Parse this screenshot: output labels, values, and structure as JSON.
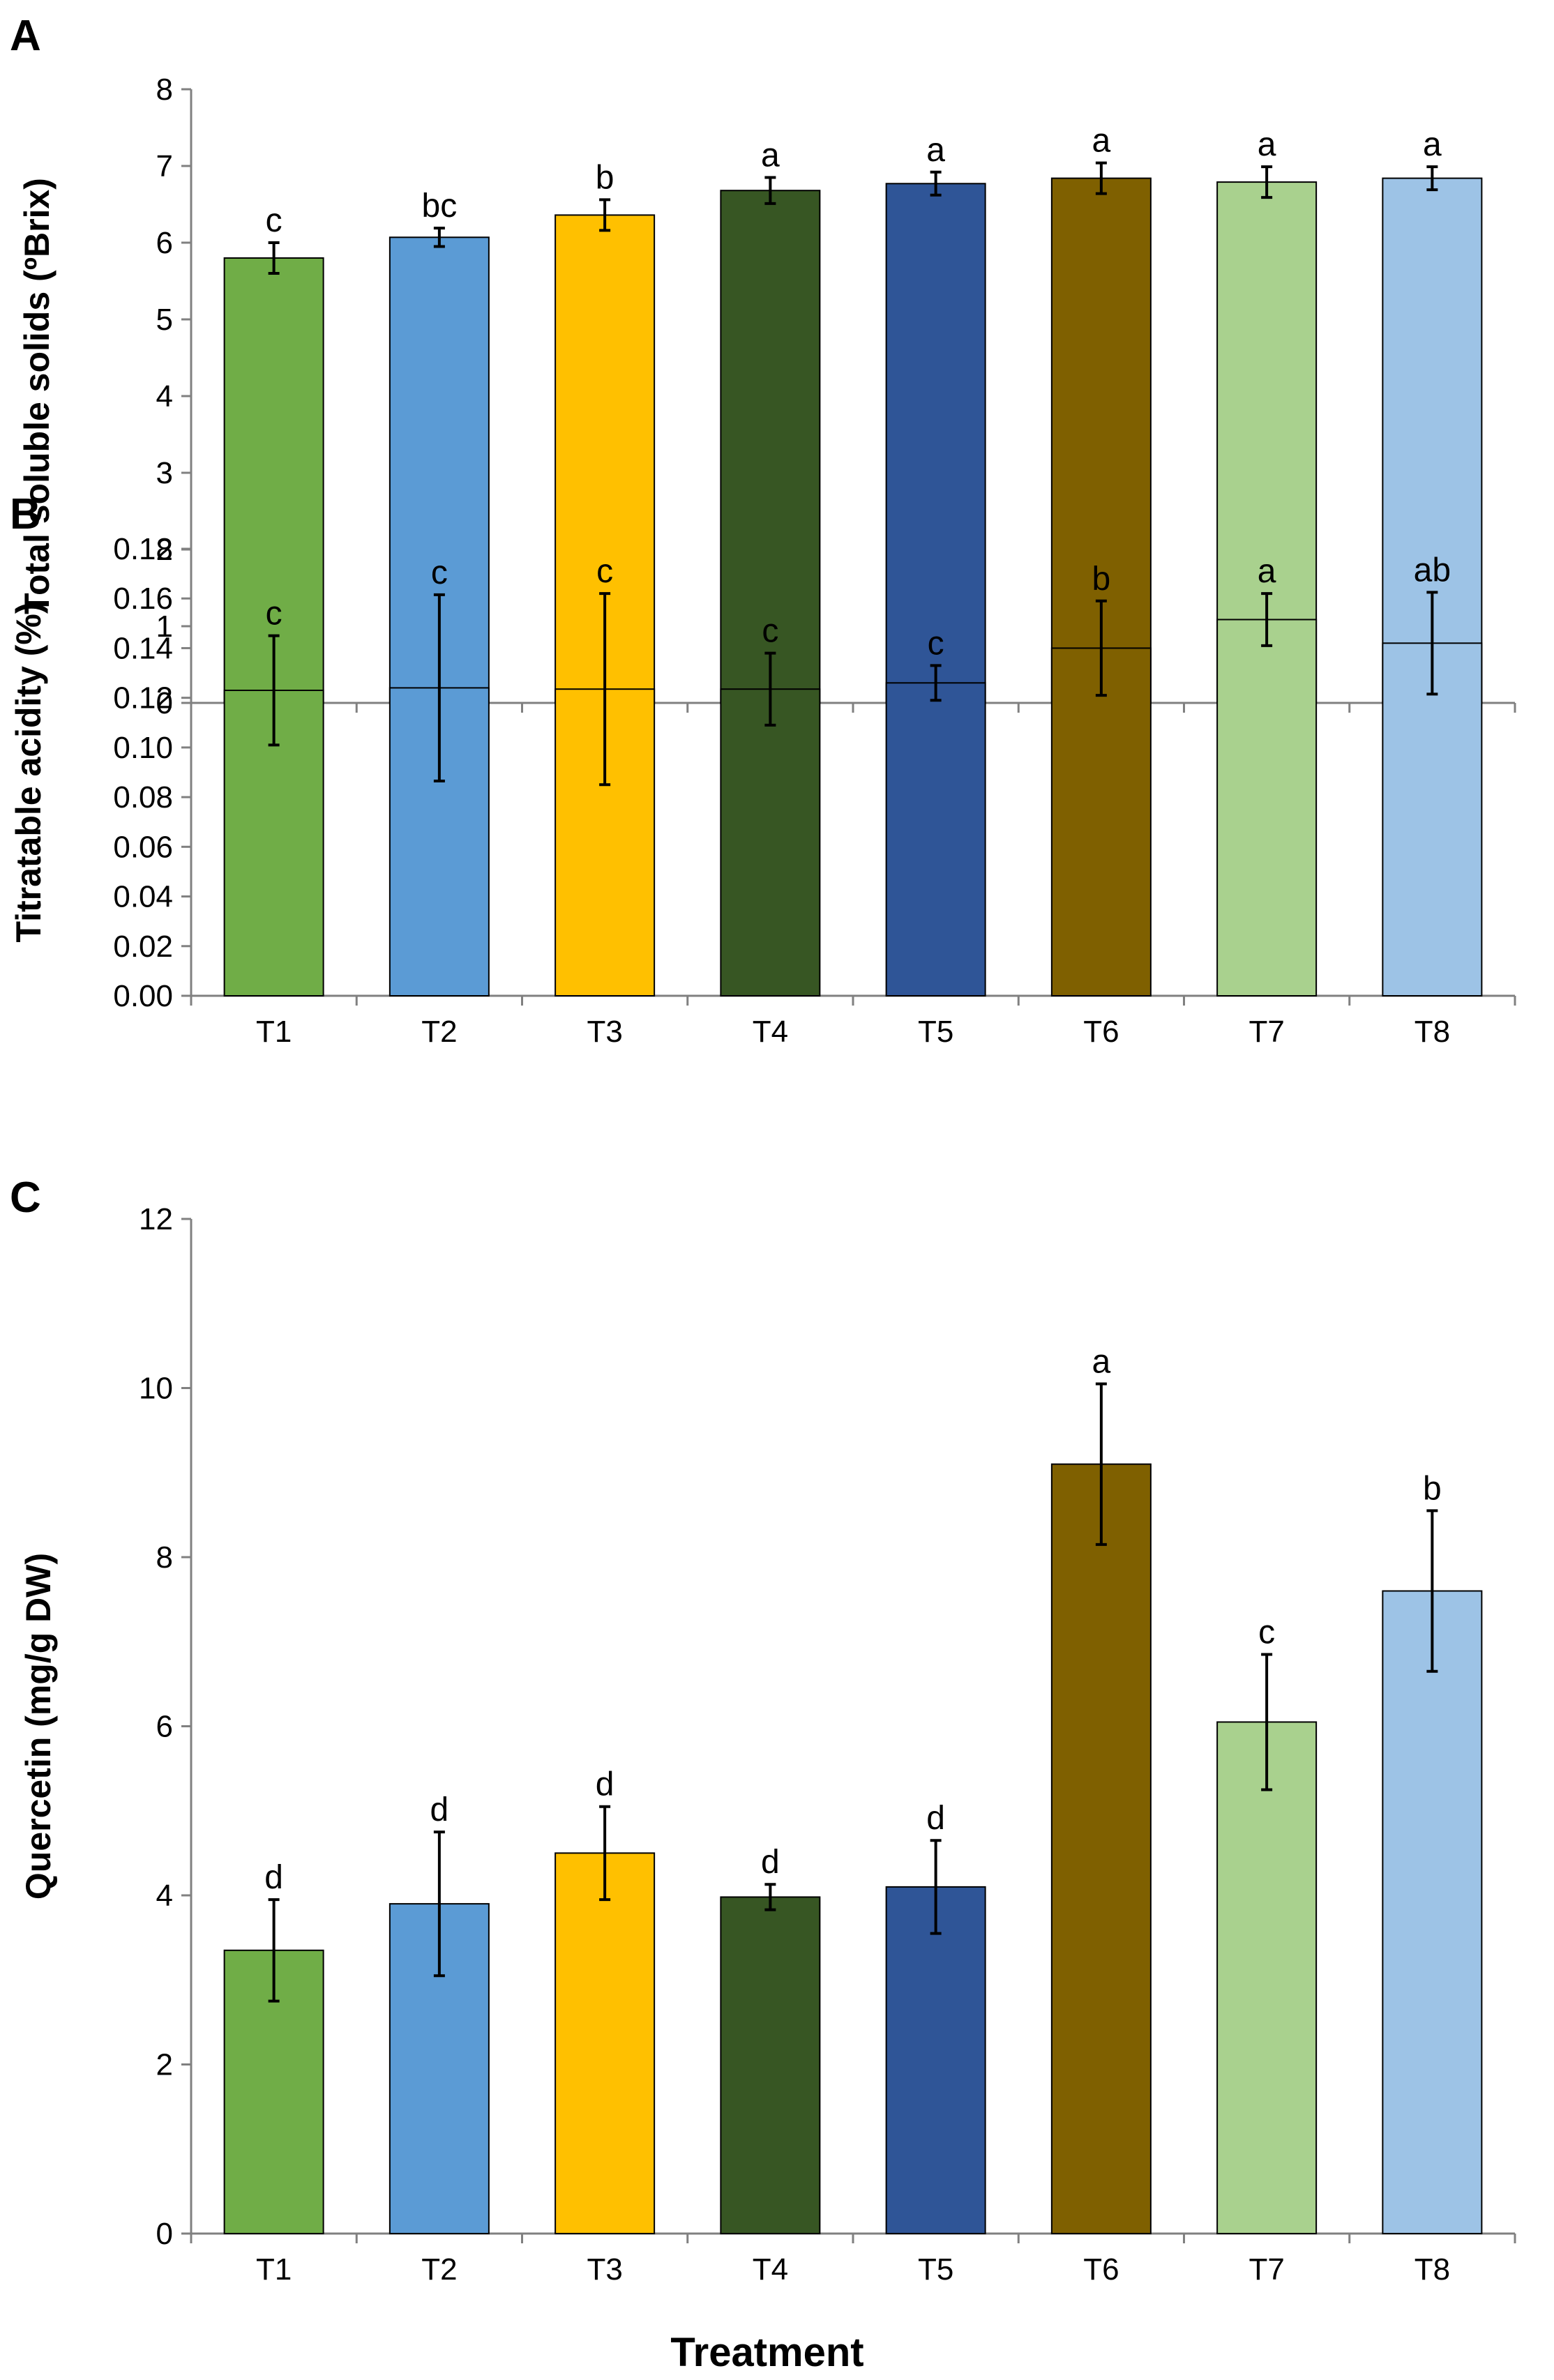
{
  "x_title": "Treatment",
  "colors": [
    "#70ad47",
    "#5b9bd5",
    "#ffc000",
    "#375623",
    "#2f5597",
    "#7f6000",
    "#a9d18e",
    "#9dc3e6"
  ],
  "chart_data": [
    {
      "type": "bar",
      "panel": "A",
      "title": "",
      "xlabel": "",
      "ylabel": "Total soluble solids (ºBrix)",
      "ylim": [
        0,
        8
      ],
      "yticks": [
        0,
        1,
        2,
        3,
        4,
        5,
        6,
        7,
        8
      ],
      "ytick_labels": [
        "0",
        "1",
        "2",
        "3",
        "4",
        "5",
        "6",
        "7",
        "8"
      ],
      "categories": [
        "T1",
        "T2",
        "T3",
        "T4",
        "T5",
        "T6",
        "T7",
        "T8"
      ],
      "values": [
        5.8,
        6.07,
        6.36,
        6.68,
        6.77,
        6.84,
        6.79,
        6.84
      ],
      "errors": [
        0.2,
        0.12,
        0.2,
        0.17,
        0.15,
        0.2,
        0.2,
        0.15
      ],
      "letters": [
        "c",
        "bc",
        "b",
        "a",
        "a",
        "a",
        "a",
        "a"
      ]
    },
    {
      "type": "bar",
      "panel": "B",
      "title": "",
      "xlabel": "",
      "ylabel": "Titratable acidity (%)",
      "ylim": [
        0,
        0.18
      ],
      "yticks": [
        0,
        0.02,
        0.04,
        0.06,
        0.08,
        0.1,
        0.12,
        0.14,
        0.16,
        0.18
      ],
      "ytick_labels": [
        "0.00",
        "0.02",
        "0.04",
        "0.06",
        "0.08",
        "0.10",
        "0.12",
        "0.14",
        "0.16",
        "0.18"
      ],
      "categories": [
        "T1",
        "T2",
        "T3",
        "T4",
        "T5",
        "T6",
        "T7",
        "T8"
      ],
      "values": [
        0.123,
        0.124,
        0.1235,
        0.1235,
        0.126,
        0.14,
        0.1515,
        0.142
      ],
      "errors": [
        0.022,
        0.0375,
        0.0385,
        0.0145,
        0.007,
        0.019,
        0.0105,
        0.0205
      ],
      "letters": [
        "c",
        "c",
        "c",
        "c",
        "c",
        "b",
        "a",
        "ab"
      ]
    },
    {
      "type": "bar",
      "panel": "C",
      "title": "",
      "xlabel": "Treatment",
      "ylabel": "Quercetin (mg/g DW)",
      "ylim": [
        0,
        12
      ],
      "yticks": [
        0,
        2,
        4,
        6,
        8,
        10,
        12
      ],
      "ytick_labels": [
        "0",
        "2",
        "4",
        "6",
        "8",
        "10",
        "12"
      ],
      "categories": [
        "T1",
        "T2",
        "T3",
        "T4",
        "T5",
        "T6",
        "T7",
        "T8"
      ],
      "values": [
        3.35,
        3.9,
        4.5,
        3.98,
        4.1,
        9.1,
        6.05,
        7.6
      ],
      "errors": [
        0.6,
        0.85,
        0.55,
        0.15,
        0.55,
        0.95,
        0.8,
        0.95
      ],
      "letters": [
        "d",
        "d",
        "d",
        "d",
        "d",
        "a",
        "c",
        "b"
      ]
    }
  ]
}
